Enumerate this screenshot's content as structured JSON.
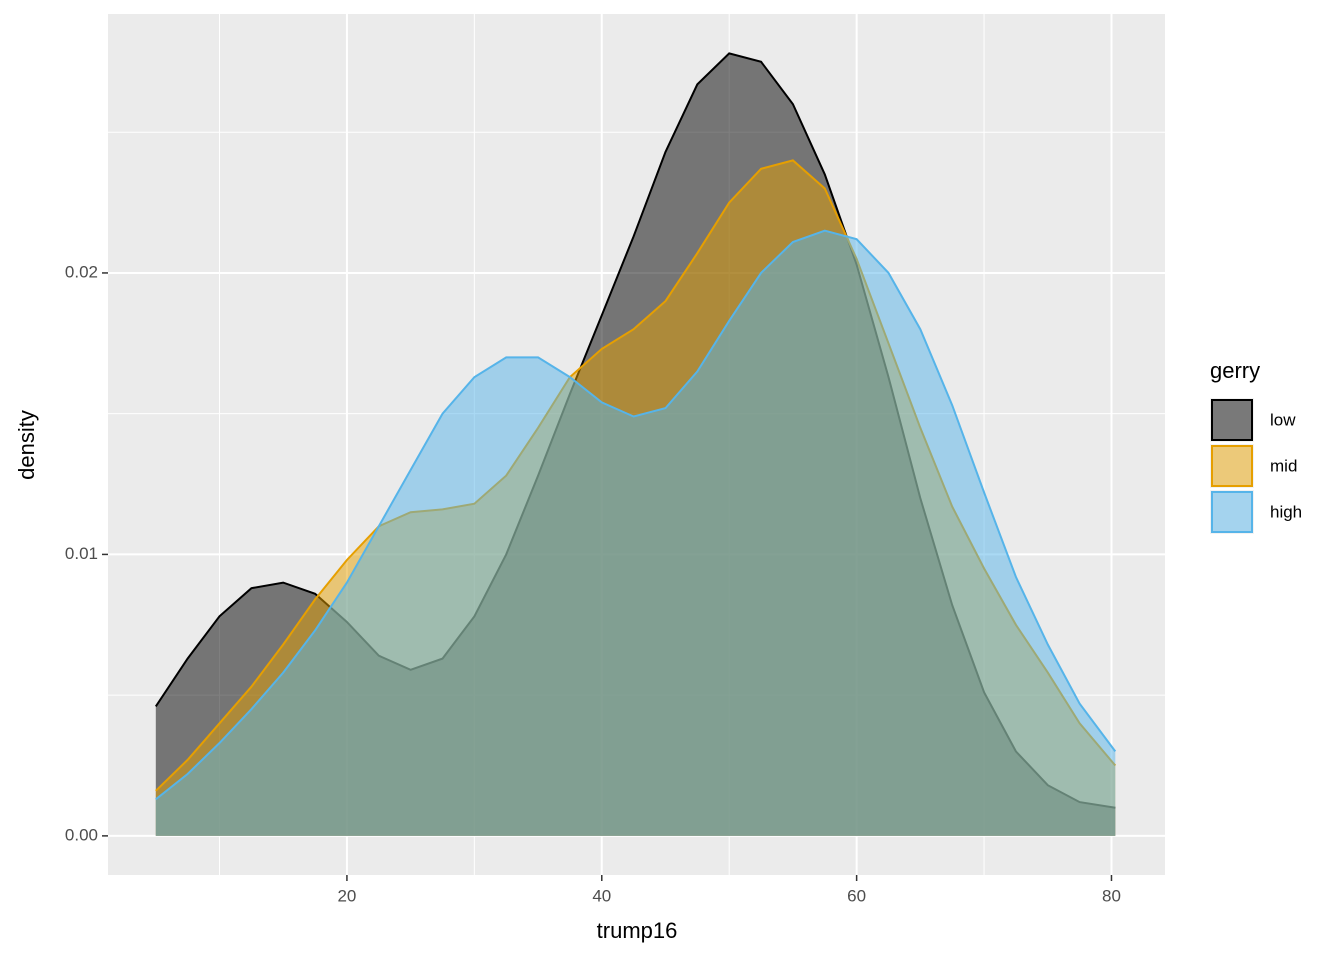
{
  "chart_data": {
    "type": "density",
    "x_label": "trump16",
    "y_label": "density",
    "legend_title": "gerry",
    "x": [
      5,
      7.5,
      10,
      12.5,
      15,
      17.5,
      20,
      22.5,
      25,
      27.5,
      30,
      32.5,
      35,
      37.5,
      40,
      42.5,
      45,
      47.5,
      50,
      52.5,
      55,
      57.5,
      60,
      62.5,
      65,
      67.5,
      70,
      72.5,
      75,
      77.5,
      80.3
    ],
    "series": [
      {
        "name": "low",
        "color": "#000000",
        "values": [
          0.0046,
          0.0063,
          0.0078,
          0.0088,
          0.009,
          0.0086,
          0.0076,
          0.0064,
          0.0059,
          0.0063,
          0.0078,
          0.01,
          0.0128,
          0.0157,
          0.0185,
          0.0213,
          0.0243,
          0.0267,
          0.0278,
          0.0275,
          0.026,
          0.0235,
          0.0203,
          0.0163,
          0.012,
          0.0082,
          0.0051,
          0.003,
          0.0018,
          0.0012,
          0.001
        ]
      },
      {
        "name": "mid",
        "color": "#E69F00",
        "values": [
          0.0016,
          0.0027,
          0.004,
          0.0053,
          0.0068,
          0.0084,
          0.0098,
          0.011,
          0.0115,
          0.0116,
          0.0118,
          0.0128,
          0.0145,
          0.0163,
          0.0173,
          0.018,
          0.019,
          0.0207,
          0.0225,
          0.0237,
          0.024,
          0.023,
          0.0205,
          0.0175,
          0.0145,
          0.0117,
          0.0095,
          0.0075,
          0.0058,
          0.004,
          0.0025
        ]
      },
      {
        "name": "high",
        "color": "#56B4E9",
        "values": [
          0.0013,
          0.0022,
          0.0033,
          0.0045,
          0.0058,
          0.0073,
          0.009,
          0.011,
          0.013,
          0.015,
          0.0163,
          0.017,
          0.017,
          0.0163,
          0.0154,
          0.0149,
          0.0152,
          0.0165,
          0.0183,
          0.02,
          0.0211,
          0.0215,
          0.0212,
          0.02,
          0.018,
          0.0153,
          0.0122,
          0.0092,
          0.0068,
          0.0047,
          0.003
        ]
      }
    ],
    "fill_opacity": 0.5,
    "xlim": [
      1.25,
      84.2
    ],
    "ylim": [
      -0.00139,
      0.0292
    ],
    "xticks": [
      20,
      40,
      60,
      80
    ],
    "yticks": [
      {
        "value": 0,
        "label": "0.00"
      },
      0.01,
      0.02
    ],
    "x_minor_grid": [
      10,
      30,
      50,
      70
    ],
    "y_minor_grid": [
      0.005,
      0.015,
      0.025
    ],
    "grid": true,
    "legend": "right"
  }
}
